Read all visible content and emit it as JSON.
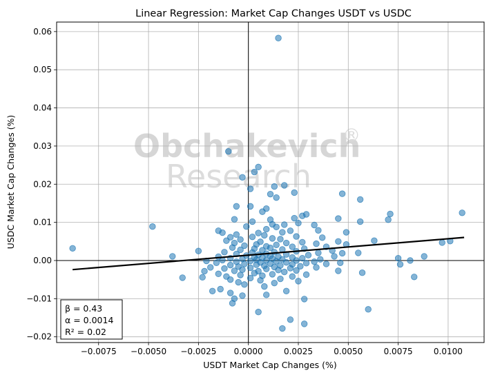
{
  "chart_data": {
    "type": "scatter",
    "title": "Linear Regression: Market Cap Changes USDT vs USDC",
    "xlabel": "USDT Market Cap Changes (%)",
    "ylabel": "USDC Market Cap Changes (%)",
    "xlim": [
      -0.0096,
      0.0118
    ],
    "ylim": [
      -0.0215,
      0.0625
    ],
    "xticks": [
      -0.0075,
      -0.005,
      -0.0025,
      0,
      0.0025,
      0.005,
      0.0075,
      0.01
    ],
    "xtick_labels": [
      "−0.0075",
      "−0.0050",
      "−0.0025",
      "0.0000",
      "0.0025",
      "0.0050",
      "0.0075",
      "0.0100"
    ],
    "yticks": [
      -0.02,
      -0.01,
      0,
      0.01,
      0.02,
      0.03,
      0.04,
      0.05,
      0.06
    ],
    "ytick_labels": [
      "−0.02",
      "−0.01",
      "0.00",
      "0.01",
      "0.02",
      "0.03",
      "0.04",
      "0.05",
      "0.06"
    ],
    "grid": true,
    "point_color": "#1f77b4",
    "line_color": "#000000",
    "regression": {
      "slope": 0.43,
      "intercept": 0.0014,
      "x_range": [
        -0.0088,
        0.0108
      ]
    },
    "stats": [
      "β = 0.43",
      "α = 0.0014",
      "R² = 0.02"
    ],
    "watermark": {
      "line1": "Obchakevich",
      "line2": "Research",
      "mark": "®"
    },
    "points": [
      [
        0.0015,
        0.0583
      ],
      [
        -0.001,
        0.0286
      ],
      [
        0.0005,
        0.0245
      ],
      [
        0.0003,
        0.0232
      ],
      [
        -0.0003,
        0.0218
      ],
      [
        0.0018,
        0.0197
      ],
      [
        0.0013,
        0.0194
      ],
      [
        0.0001,
        0.0188
      ],
      [
        0.0023,
        0.0178
      ],
      [
        0.0047,
        0.0175
      ],
      [
        0.0011,
        0.0174
      ],
      [
        0.0014,
        0.0165
      ],
      [
        0.0056,
        0.016
      ],
      [
        -0.0006,
        0.0142
      ],
      [
        0.0001,
        0.0142
      ],
      [
        0.0009,
        0.0136
      ],
      [
        0.0007,
        0.0128
      ],
      [
        0.0071,
        0.0122
      ],
      [
        0.0107,
        0.0125
      ],
      [
        0.0029,
        0.0121
      ],
      [
        0.0027,
        0.0117
      ],
      [
        0.0023,
        0.0111
      ],
      [
        0.0045,
        0.011
      ],
      [
        0.007,
        0.0107
      ],
      [
        -0.0007,
        0.0108
      ],
      [
        0.0011,
        0.0107
      ],
      [
        0.0002,
        0.0102
      ],
      [
        0.0056,
        0.0102
      ],
      [
        0.0012,
        0.0095
      ],
      [
        0.0018,
        0.0094
      ],
      [
        0.0025,
        0.0098
      ],
      [
        0.0033,
        0.0093
      ],
      [
        -0.0048,
        0.0089
      ],
      [
        0.0014,
        0.0088
      ],
      [
        -0.0001,
        0.0089
      ],
      [
        0.0009,
        0.0082
      ],
      [
        -0.0015,
        0.0078
      ],
      [
        0.0021,
        0.0078
      ],
      [
        0.0035,
        0.0079
      ],
      [
        0.0049,
        0.0074
      ],
      [
        -0.0013,
        0.0073
      ],
      [
        0.0005,
        0.0072
      ],
      [
        0.0017,
        0.0074
      ],
      [
        -0.0006,
        0.0068
      ],
      [
        0.0008,
        0.0066
      ],
      [
        0.0024,
        0.0063
      ],
      [
        -0.0009,
        0.0061
      ],
      [
        0.0002,
        0.0062
      ],
      [
        0.0012,
        0.0058
      ],
      [
        0.0037,
        0.006
      ],
      [
        0.0016,
        0.0056
      ],
      [
        -0.0004,
        0.0055
      ],
      [
        0.0063,
        0.0052
      ],
      [
        0.0101,
        0.0051
      ],
      [
        0.0045,
        0.005
      ],
      [
        -0.0011,
        0.0052
      ],
      [
        0.0006,
        0.0049
      ],
      [
        0.0027,
        0.0048
      ],
      [
        0.0019,
        0.0046
      ],
      [
        -0.0007,
        0.0046
      ],
      [
        0.0034,
        0.0044
      ],
      [
        0.0004,
        0.0042
      ],
      [
        0.0014,
        0.0041
      ],
      [
        0.0097,
        0.0047
      ],
      [
        0.0049,
        0.0042
      ],
      [
        -0.0002,
        0.0039
      ],
      [
        0.0009,
        0.0037
      ],
      [
        0.0022,
        0.0036
      ],
      [
        0.0039,
        0.0036
      ],
      [
        -0.0008,
        0.0034
      ],
      [
        0.0011,
        0.0033
      ],
      [
        -0.0088,
        0.0032
      ],
      [
        0.0003,
        0.0031
      ],
      [
        0.0028,
        0.0031
      ],
      [
        0.0017,
        0.0029
      ],
      [
        -0.0004,
        0.0028
      ],
      [
        0.0007,
        0.0027
      ],
      [
        0.0042,
        0.0026
      ],
      [
        -0.0025,
        0.0025
      ],
      [
        0.0024,
        0.0024
      ],
      [
        0.0013,
        0.0022
      ],
      [
        -0.0012,
        0.0022
      ],
      [
        0.0002,
        0.0021
      ],
      [
        0.0035,
        0.002
      ],
      [
        0.0047,
        0.0019
      ],
      [
        0.0055,
        0.002
      ],
      [
        0.0009,
        0.0018
      ],
      [
        -0.0006,
        0.0017
      ],
      [
        0.0019,
        0.0016
      ],
      [
        0.0005,
        0.0015
      ],
      [
        0.003,
        0.0014
      ],
      [
        -0.0001,
        0.0013
      ],
      [
        0.0011,
        0.0012
      ],
      [
        0.0043,
        0.0011
      ],
      [
        -0.0038,
        0.0011
      ],
      [
        0.0088,
        0.0011
      ],
      [
        0.0015,
        0.001
      ],
      [
        -0.0015,
        0.001
      ],
      [
        0.0003,
        0.0009
      ],
      [
        0.0022,
        0.0008
      ],
      [
        0.0007,
        0.0007
      ],
      [
        -0.0009,
        0.0006
      ],
      [
        0.0027,
        0.0006
      ],
      [
        0.0012,
        0.0005
      ],
      [
        0.0075,
        0.0006
      ],
      [
        -0.0003,
        0.0004
      ],
      [
        0.0017,
        0.0003
      ],
      [
        0.0036,
        0.0003
      ],
      [
        0.0004,
        0.0002
      ],
      [
        -0.0013,
        0.0001
      ],
      [
        0.0009,
        0.0001
      ],
      [
        0.0024,
        0.0
      ],
      [
        0.0081,
        0.0
      ],
      [
        -0.0021,
        -0.0001
      ],
      [
        0.0001,
        -0.0001
      ],
      [
        0.0014,
        -0.0002
      ],
      [
        0.0033,
        -0.0003
      ],
      [
        -0.0006,
        -0.0003
      ],
      [
        0.0019,
        -0.0005
      ],
      [
        0.0006,
        -0.0005
      ],
      [
        0.0046,
        -0.0006
      ],
      [
        -0.0016,
        -0.0006
      ],
      [
        0.0029,
        -0.0007
      ],
      [
        0.0011,
        -0.0008
      ],
      [
        -0.0002,
        -0.0009
      ],
      [
        0.0039,
        -0.0009
      ],
      [
        0.0076,
        -0.001
      ],
      [
        0.0022,
        -0.001
      ],
      [
        0.0004,
        -0.0011
      ],
      [
        -0.0009,
        -0.0012
      ],
      [
        0.0016,
        -0.0013
      ],
      [
        0.0008,
        -0.0014
      ],
      [
        0.0026,
        -0.0015
      ],
      [
        -0.0005,
        -0.0016
      ],
      [
        0.0013,
        -0.0017
      ],
      [
        -0.0019,
        -0.0018
      ],
      [
        0.0034,
        -0.0018
      ],
      [
        0.0001,
        -0.0019
      ],
      [
        0.0021,
        -0.002
      ],
      [
        -0.0012,
        -0.0021
      ],
      [
        0.0009,
        -0.0022
      ],
      [
        0.0045,
        -0.0027
      ],
      [
        -0.0003,
        -0.0024
      ],
      [
        0.0015,
        -0.0025
      ],
      [
        0.0024,
        -0.0026
      ],
      [
        -0.0007,
        -0.0027
      ],
      [
        0.0005,
        -0.0028
      ],
      [
        -0.0022,
        -0.0028
      ],
      [
        0.0018,
        -0.003
      ],
      [
        0.0057,
        -0.0032
      ],
      [
        0.0003,
        -0.0033
      ],
      [
        -0.0015,
        -0.0035
      ],
      [
        0.0012,
        -0.0036
      ],
      [
        0.0029,
        -0.0037
      ],
      [
        -0.0004,
        -0.0038
      ],
      [
        0.0007,
        -0.004
      ],
      [
        -0.0011,
        -0.0042
      ],
      [
        0.0022,
        -0.0042
      ],
      [
        0.0083,
        -0.0043
      ],
      [
        -0.0023,
        -0.0044
      ],
      [
        -0.0033,
        -0.0045
      ],
      [
        0.0001,
        -0.0046
      ],
      [
        0.0016,
        -0.0048
      ],
      [
        -0.0009,
        -0.005
      ],
      [
        0.0006,
        -0.0052
      ],
      [
        0.0025,
        -0.0054
      ],
      [
        -0.0005,
        -0.0057
      ],
      [
        0.0013,
        -0.0059
      ],
      [
        -0.0002,
        -0.0063
      ],
      [
        0.0008,
        -0.0068
      ],
      [
        -0.0014,
        -0.0075
      ],
      [
        0.0019,
        -0.008
      ],
      [
        -0.0018,
        -0.008
      ],
      [
        -0.0009,
        -0.0085
      ],
      [
        0.0009,
        -0.009
      ],
      [
        -0.0003,
        -0.0092
      ],
      [
        -0.0007,
        -0.01
      ],
      [
        0.0028,
        -0.0101
      ],
      [
        -0.0008,
        -0.0112
      ],
      [
        0.006,
        -0.0128
      ],
      [
        0.0005,
        -0.0135
      ],
      [
        0.0021,
        -0.0155
      ],
      [
        0.0028,
        -0.0166
      ],
      [
        0.0017,
        -0.0178
      ]
    ]
  }
}
